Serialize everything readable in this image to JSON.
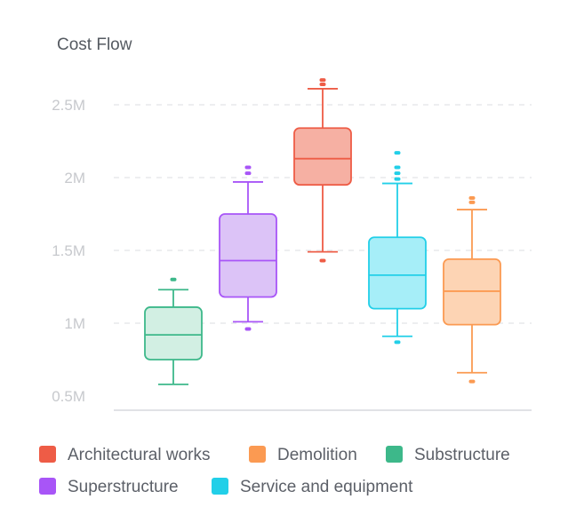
{
  "chart_data": {
    "type": "boxplot",
    "title": "Cost Flow",
    "xlabel": "",
    "ylabel": "",
    "ylim": [
      0.5,
      2.5
    ],
    "grid": true,
    "legend_position": "bottom",
    "y_ticks": [
      {
        "value": 2.5,
        "label": "2.5M"
      },
      {
        "value": 2.0,
        "label": "2M"
      },
      {
        "value": 1.5,
        "label": "1.5M"
      },
      {
        "value": 1.0,
        "label": "1M"
      },
      {
        "value": 0.5,
        "label": "0.5M"
      }
    ],
    "series": [
      {
        "name": "Substructure",
        "color": "#3db88a",
        "fill": "#d2efe3",
        "min": 0.58,
        "q1": 0.75,
        "median": 0.92,
        "q3": 1.11,
        "max": 1.23,
        "outliers": [
          1.3
        ]
      },
      {
        "name": "Superstructure",
        "color": "#a855f7",
        "fill": "#dcc3f7",
        "min": 1.01,
        "q1": 1.18,
        "median": 1.43,
        "q3": 1.75,
        "max": 1.97,
        "outliers": [
          2.03,
          2.07,
          0.96
        ]
      },
      {
        "name": "Architectural works",
        "color": "#ee5c46",
        "fill": "#f6b0a3",
        "min": 1.49,
        "q1": 1.95,
        "median": 2.13,
        "q3": 2.34,
        "max": 2.61,
        "outliers": [
          2.64,
          2.67,
          1.43
        ]
      },
      {
        "name": "Service and equipment",
        "color": "#22cfe8",
        "fill": "#a6eef8",
        "min": 0.91,
        "q1": 1.1,
        "median": 1.33,
        "q3": 1.59,
        "max": 1.96,
        "outliers": [
          1.99,
          2.03,
          2.07,
          2.17,
          0.87
        ]
      },
      {
        "name": "Demolition",
        "color": "#fb9a52",
        "fill": "#fdd4b4",
        "min": 0.66,
        "q1": 0.99,
        "median": 1.22,
        "q3": 1.44,
        "max": 1.78,
        "outliers": [
          1.83,
          1.86,
          0.6
        ]
      }
    ],
    "legend_order": [
      "Architectural works",
      "Demolition",
      "Substructure",
      "Superstructure",
      "Service and equipment"
    ]
  }
}
